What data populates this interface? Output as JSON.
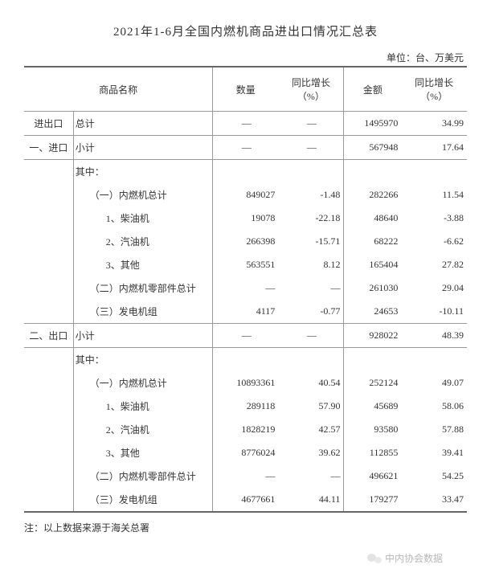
{
  "title": "2021年1-6月全国内燃机商品进出口情况汇总表",
  "unit": "单位：台、万美元",
  "header": {
    "name": "商品名称",
    "qty": "数量",
    "qty_growth": "同比增长（%）",
    "amt": "金额",
    "amt_growth": "同比增长（%）"
  },
  "labels": {
    "total": "进出口",
    "import": "一、进口",
    "export": "二、出口",
    "sum": "总计",
    "subtotal": "小计",
    "ofwhich": "其中：",
    "ic_total": "（一）内燃机总计",
    "diesel": "1、柴油机",
    "gasoline": "2、汽油机",
    "other": "3、其他",
    "parts": "（二）内燃机零部件总计",
    "genset": "（三）发电机组",
    "dash": "—",
    "sdash": "―"
  },
  "rows": {
    "total": {
      "qty": "—",
      "qtyg": "—",
      "amt": "1495970",
      "amtg": "34.99"
    },
    "imp_sub": {
      "qty": "—",
      "qtyg": "—",
      "amt": "567948",
      "amtg": "17.64"
    },
    "imp_ic": {
      "qty": "849027",
      "qtyg": "-1.48",
      "amt": "282266",
      "amtg": "11.54"
    },
    "imp_d": {
      "qty": "19078",
      "qtyg": "-22.18",
      "amt": "48640",
      "amtg": "-3.88"
    },
    "imp_g": {
      "qty": "266398",
      "qtyg": "-15.71",
      "amt": "68222",
      "amtg": "-6.62"
    },
    "imp_o": {
      "qty": "563551",
      "qtyg": "8.12",
      "amt": "165404",
      "amtg": "27.82"
    },
    "imp_p": {
      "qty": "―",
      "qtyg": "―",
      "amt": "261030",
      "amtg": "29.04"
    },
    "imp_gs": {
      "qty": "4117",
      "qtyg": "-0.77",
      "amt": "24653",
      "amtg": "-10.11"
    },
    "exp_sub": {
      "qty": "—",
      "qtyg": "—",
      "amt": "928022",
      "amtg": "48.39"
    },
    "exp_ic": {
      "qty": "10893361",
      "qtyg": "40.54",
      "amt": "252124",
      "amtg": "49.07"
    },
    "exp_d": {
      "qty": "289118",
      "qtyg": "57.90",
      "amt": "45689",
      "amtg": "58.06"
    },
    "exp_g": {
      "qty": "1828219",
      "qtyg": "42.57",
      "amt": "93580",
      "amtg": "57.88"
    },
    "exp_o": {
      "qty": "8776024",
      "qtyg": "39.62",
      "amt": "112855",
      "amtg": "39.41"
    },
    "exp_p": {
      "qty": "―",
      "qtyg": "―",
      "amt": "496621",
      "amtg": "54.25"
    },
    "exp_gs": {
      "qty": "4677661",
      "qtyg": "44.11",
      "amt": "179277",
      "amtg": "33.47"
    }
  },
  "note": "注：以上数据来源于海关总署",
  "brand": "中内协会数据"
}
